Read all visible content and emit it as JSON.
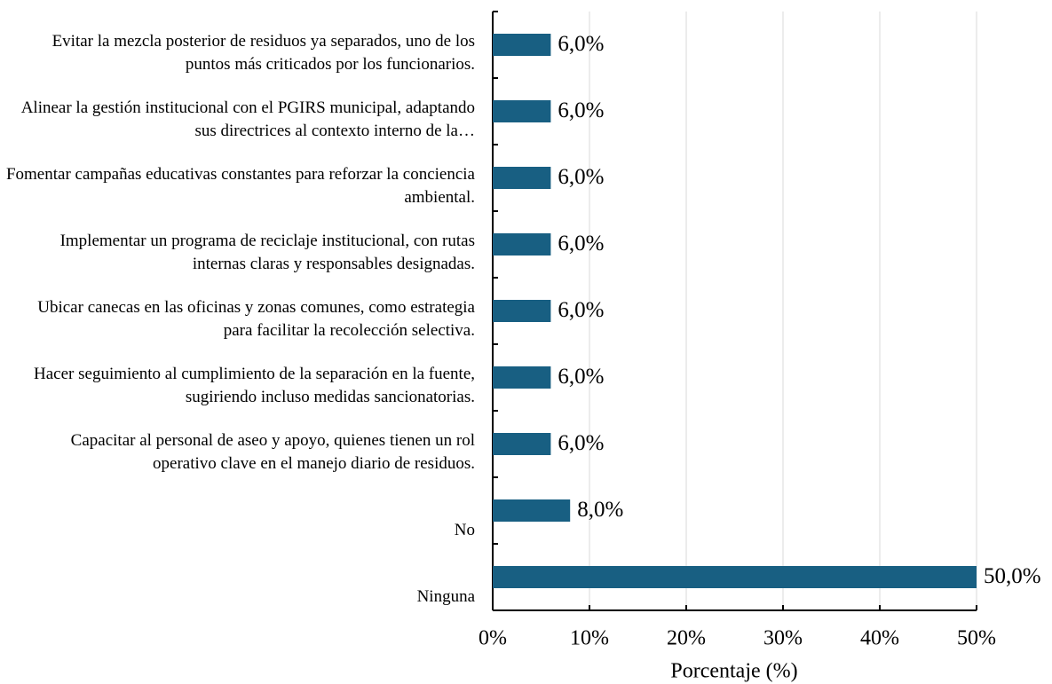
{
  "chart_data": {
    "type": "barh",
    "categories": [
      "Evitar la mezcla posterior de residuos ya separados, uno de los puntos más criticados por los funcionarios.",
      "Alinear la gestión institucional con el PGIRS municipal, adaptando sus directrices al contexto interno de la…",
      "Fomentar campañas educativas constantes para reforzar la conciencia ambiental.",
      "Implementar un programa de reciclaje institucional, con rutas internas claras y responsables designadas.",
      "Ubicar canecas en las oficinas y zonas comunes, como estrategia para facilitar la recolección selectiva.",
      "Hacer seguimiento al cumplimiento de la separación en la fuente, sugiriendo incluso medidas sancionatorias.",
      "Capacitar al personal de aseo y apoyo, quienes tienen un rol operativo clave en el manejo diario de residuos.",
      "No",
      "Ninguna"
    ],
    "values": [
      6,
      6,
      6,
      6,
      6,
      6,
      6,
      8,
      50
    ],
    "value_labels": [
      "6,0%",
      "6,0%",
      "6,0%",
      "6,0%",
      "6,0%",
      "6,0%",
      "6,0%",
      "8,0%",
      "50,0%"
    ],
    "color": "#185f82",
    "xlim": [
      0,
      50
    ],
    "xticks": [
      {
        "value": 0,
        "label": "0%"
      },
      {
        "value": 10,
        "label": "10%"
      },
      {
        "value": 20,
        "label": "20%"
      },
      {
        "value": 30,
        "label": "30%"
      },
      {
        "value": 40,
        "label": "40%"
      },
      {
        "value": 50,
        "label": "50%"
      }
    ],
    "xlabel": "Porcentaje (%)",
    "grid": true
  }
}
